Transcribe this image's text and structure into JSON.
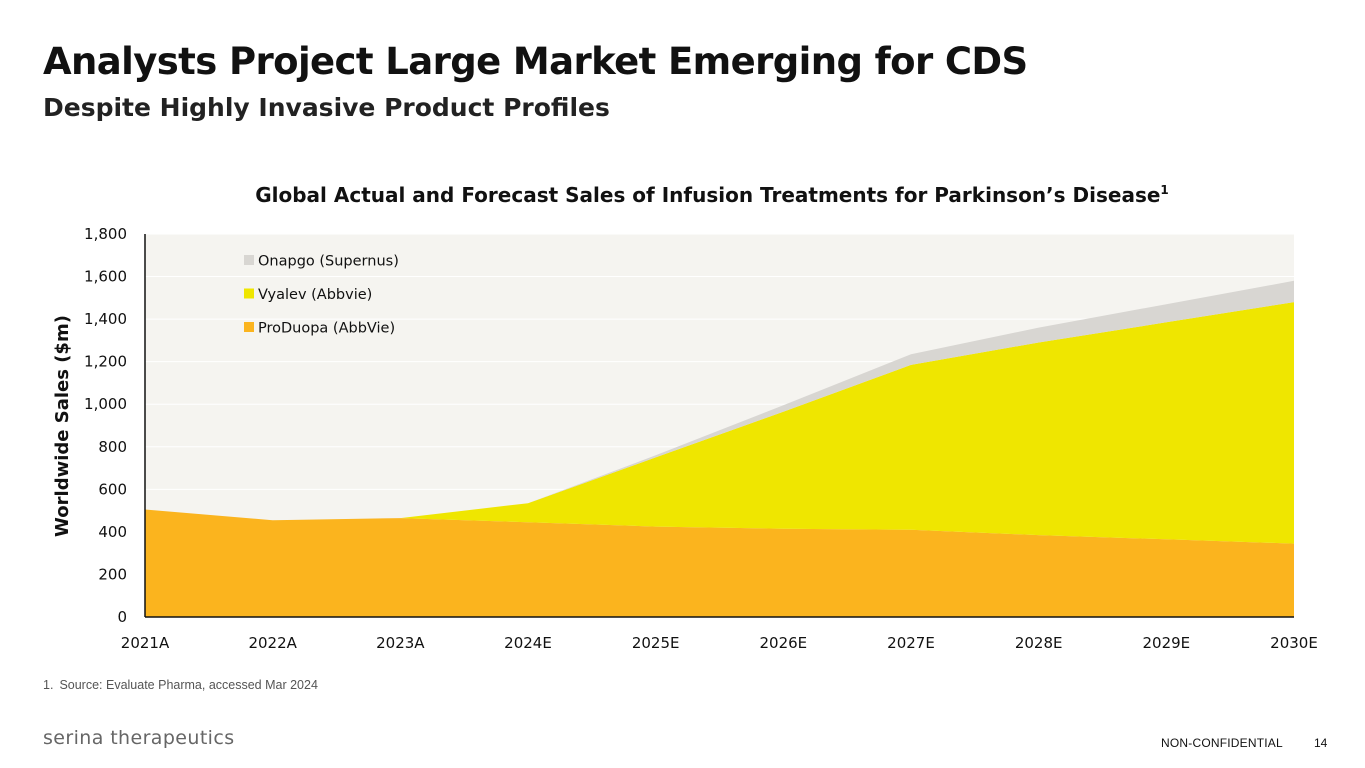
{
  "slide": {
    "title": "Analysts Project Large Market Emerging for CDS",
    "subtitle": "Despite Highly Invasive Product Profiles"
  },
  "chart_data": {
    "type": "area",
    "stacked": true,
    "title": "Global Actual and Forecast Sales of Infusion Treatments for Parkinson’s Disease",
    "title_superscript": "1",
    "xlabel": "",
    "ylabel": "Worldwide Sales ($m)",
    "ylim": [
      0,
      1800
    ],
    "y_ticks": [
      0,
      200,
      400,
      600,
      800,
      1000,
      1200,
      1400,
      1600,
      1800
    ],
    "y_tick_labels": [
      "0",
      "200",
      "400",
      "600",
      "800",
      "1,000",
      "1,200",
      "1,400",
      "1,600",
      "1,800"
    ],
    "categories": [
      "2021A",
      "2022A",
      "2023A",
      "2024E",
      "2025E",
      "2026E",
      "2027E",
      "2028E",
      "2029E",
      "2030E"
    ],
    "series": [
      {
        "name": "ProDuopa (AbbVie)",
        "color": "#FBB41E",
        "values": [
          505,
          455,
          465,
          445,
          425,
          415,
          410,
          385,
          365,
          345
        ]
      },
      {
        "name": "Vyalev (Abbvie)",
        "color": "#EFE600",
        "values": [
          0,
          0,
          0,
          90,
          325,
          550,
          775,
          905,
          1020,
          1135
        ]
      },
      {
        "name": "Onapgo (Supernus)",
        "color": "#D8D6D2",
        "values": [
          0,
          0,
          0,
          0,
          10,
          30,
          50,
          70,
          85,
          100
        ]
      }
    ],
    "legend_order": [
      "Onapgo (Supernus)",
      "Vyalev (Abbvie)",
      "ProDuopa (AbbVie)"
    ],
    "legend_position": "top-left",
    "plot_background": "#F5F4F0",
    "grid": true
  },
  "footnote": {
    "number": "1.",
    "text": "Source: Evaluate Pharma, accessed Mar 2024"
  },
  "footer": {
    "logo_text": "serina therapeutics",
    "confidential": "NON-CONFIDENTIAL",
    "page_number": "14"
  }
}
